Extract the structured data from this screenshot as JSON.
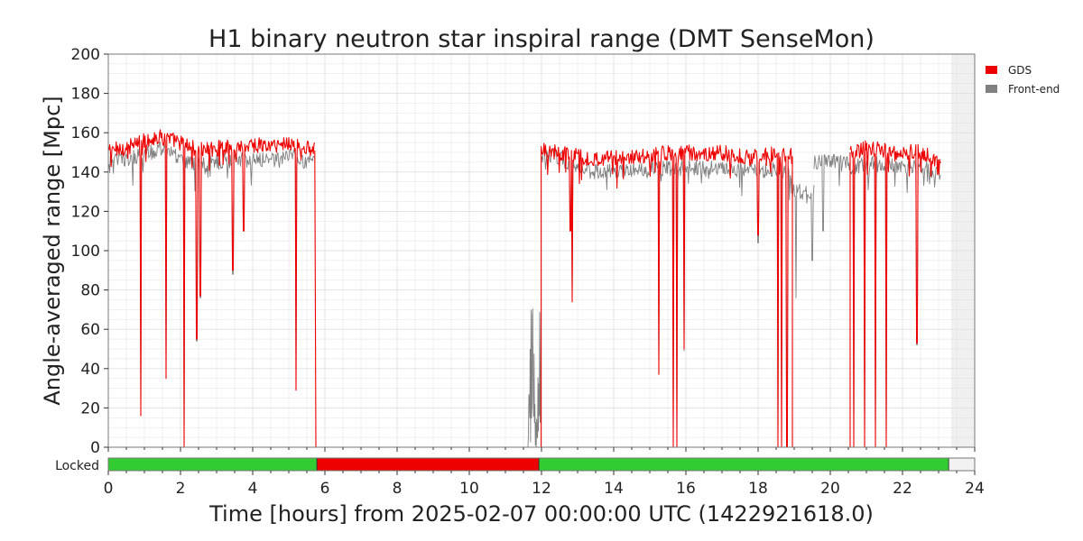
{
  "chart_data": {
    "type": "line",
    "title": "H1 binary neutron star inspiral range (DMT SenseMon)",
    "xlabel": "Time [hours] from 2025-02-07 00:00:00 UTC (1422921618.0)",
    "ylabel": "Angle-averaged range [Mpc]",
    "xlim": [
      0,
      24
    ],
    "ylim": [
      0,
      200
    ],
    "x_ticks": [
      0,
      2,
      4,
      6,
      8,
      10,
      12,
      14,
      16,
      18,
      20,
      22,
      24
    ],
    "y_ticks": [
      0,
      20,
      40,
      60,
      80,
      100,
      120,
      140,
      160,
      180,
      200
    ],
    "grid": true,
    "legend_position": "right",
    "future_region": [
      23.35,
      24
    ],
    "series": [
      {
        "name": "GDS",
        "color": "#ee0000",
        "segments": [
          {
            "x_range": [
              0.0,
              5.72
            ],
            "base": [
              [
                0,
                151
              ],
              [
                0.6,
                153
              ],
              [
                1.0,
                156
              ],
              [
                1.5,
                158
              ],
              [
                2.0,
                155
              ],
              [
                2.5,
                151
              ],
              [
                3.0,
                152
              ],
              [
                3.5,
                153
              ],
              [
                4.0,
                154
              ],
              [
                4.5,
                153
              ],
              [
                5.0,
                155
              ],
              [
                5.5,
                152
              ],
              [
                5.72,
                151
              ]
            ],
            "dips": [
              [
                0.9,
                16
              ],
              [
                1.6,
                35
              ],
              [
                2.1,
                0
              ],
              [
                2.45,
                55
              ],
              [
                2.55,
                77
              ],
              [
                3.45,
                90
              ],
              [
                3.75,
                110
              ],
              [
                5.2,
                29
              ]
            ]
          },
          {
            "x_range": [
              5.75,
              11.99
            ],
            "constant": 0
          },
          {
            "x_range": [
              11.99,
              18.95
            ],
            "base": [
              [
                11.99,
                152
              ],
              [
                12.5,
                150
              ],
              [
                13.0,
                148
              ],
              [
                13.5,
                146
              ],
              [
                14.0,
                147
              ],
              [
                14.5,
                148
              ],
              [
                15.0,
                148
              ],
              [
                15.5,
                150
              ],
              [
                16.0,
                150
              ],
              [
                16.5,
                149
              ],
              [
                17.0,
                150
              ],
              [
                17.5,
                148
              ],
              [
                18.0,
                148
              ],
              [
                18.5,
                149
              ],
              [
                18.95,
                148
              ]
            ],
            "dips": [
              [
                12.8,
                110
              ],
              [
                12.85,
                74
              ],
              [
                15.25,
                37
              ],
              [
                15.65,
                0
              ],
              [
                15.75,
                0
              ],
              [
                15.95,
                50
              ],
              [
                18.0,
                108
              ],
              [
                18.55,
                0
              ],
              [
                18.65,
                0
              ],
              [
                18.8,
                0
              ]
            ]
          },
          {
            "x_range": [
              18.95,
              20.55
            ],
            "constant": 0
          },
          {
            "x_range": [
              20.55,
              23.05
            ],
            "base": [
              [
                20.55,
                150
              ],
              [
                21.0,
                152
              ],
              [
                21.5,
                151
              ],
              [
                22.0,
                150
              ],
              [
                22.5,
                150
              ],
              [
                23.05,
                145
              ]
            ],
            "dips": [
              [
                20.65,
                0
              ],
              [
                20.95,
                0
              ],
              [
                21.25,
                0
              ],
              [
                21.55,
                0
              ],
              [
                22.4,
                53
              ]
            ]
          }
        ]
      },
      {
        "name": "Front-end",
        "color": "#808080",
        "segments": [
          {
            "x_range": [
              0.0,
              5.72
            ],
            "base": [
              [
                0,
                146
              ],
              [
                0.6,
                147
              ],
              [
                1.0,
                149
              ],
              [
                1.5,
                152
              ],
              [
                2.0,
                147
              ],
              [
                2.5,
                143
              ],
              [
                3.0,
                145
              ],
              [
                3.5,
                146
              ],
              [
                4.0,
                146
              ],
              [
                4.5,
                146
              ],
              [
                5.0,
                148
              ],
              [
                5.5,
                145
              ],
              [
                5.72,
                144
              ]
            ],
            "dips": [
              [
                0.9,
                17
              ],
              [
                1.6,
                36
              ],
              [
                2.1,
                0
              ],
              [
                2.45,
                54
              ],
              [
                2.55,
                76
              ],
              [
                3.45,
                88
              ],
              [
                3.75,
                111
              ],
              [
                5.2,
                30
              ]
            ]
          },
          {
            "x_range": [
              5.75,
              11.35
            ],
            "constant": 0
          },
          {
            "x_range": [
              11.35,
              11.99
            ],
            "constant": 0,
            "noise_burst": true
          },
          {
            "x_range": [
              11.99,
              18.95
            ],
            "base": [
              [
                11.99,
                150
              ],
              [
                12.5,
                147
              ],
              [
                13.0,
                142
              ],
              [
                13.5,
                140
              ],
              [
                14.0,
                141
              ],
              [
                14.5,
                141
              ],
              [
                15.0,
                141
              ],
              [
                15.5,
                142
              ],
              [
                16.0,
                142
              ],
              [
                16.5,
                142
              ],
              [
                17.0,
                142
              ],
              [
                17.5,
                141
              ],
              [
                18.0,
                141
              ],
              [
                18.5,
                141
              ],
              [
                18.95,
                140
              ]
            ],
            "dips": [
              [
                12.8,
                112
              ],
              [
                12.85,
                75
              ],
              [
                15.25,
                38
              ],
              [
                15.65,
                0
              ],
              [
                15.75,
                0
              ],
              [
                15.95,
                49
              ],
              [
                18.0,
                104
              ],
              [
                18.55,
                0
              ],
              [
                18.65,
                0
              ],
              [
                18.8,
                0
              ]
            ]
          },
          {
            "x_range": [
              18.95,
              19.55
            ],
            "base": [
              [
                18.95,
                130
              ],
              [
                19.55,
                130
              ]
            ],
            "dips": [
              [
                19.05,
                76
              ],
              [
                19.5,
                95
              ]
            ]
          },
          {
            "x_range": [
              19.55,
              20.55
            ],
            "base": [
              [
                19.55,
                145
              ],
              [
                20.55,
                145
              ]
            ],
            "dips": [
              [
                19.8,
                110
              ]
            ]
          },
          {
            "x_range": [
              20.55,
              23.05
            ],
            "base": [
              [
                20.55,
                142
              ],
              [
                21.0,
                144
              ],
              [
                21.5,
                144
              ],
              [
                22.0,
                143
              ],
              [
                22.5,
                143
              ],
              [
                23.05,
                139
              ]
            ],
            "dips": [
              [
                20.65,
                0
              ],
              [
                20.95,
                0
              ],
              [
                21.25,
                0
              ],
              [
                21.55,
                0
              ],
              [
                22.4,
                52
              ]
            ]
          }
        ]
      }
    ],
    "state_bar": {
      "label": "Locked",
      "segments": [
        {
          "start": 0.0,
          "end": 5.78,
          "state": "locked",
          "color": "#33cc33"
        },
        {
          "start": 5.78,
          "end": 11.93,
          "state": "unlocked",
          "color": "#ee0000"
        },
        {
          "start": 11.93,
          "end": 23.28,
          "state": "locked",
          "color": "#33cc33"
        },
        {
          "start": 23.28,
          "end": 24.0,
          "state": "future",
          "color": "#f2f2f2"
        }
      ]
    }
  },
  "colors": {
    "grid": "#e0e0e0",
    "axis": "#777777",
    "future_shade": "#f0f0f0"
  }
}
